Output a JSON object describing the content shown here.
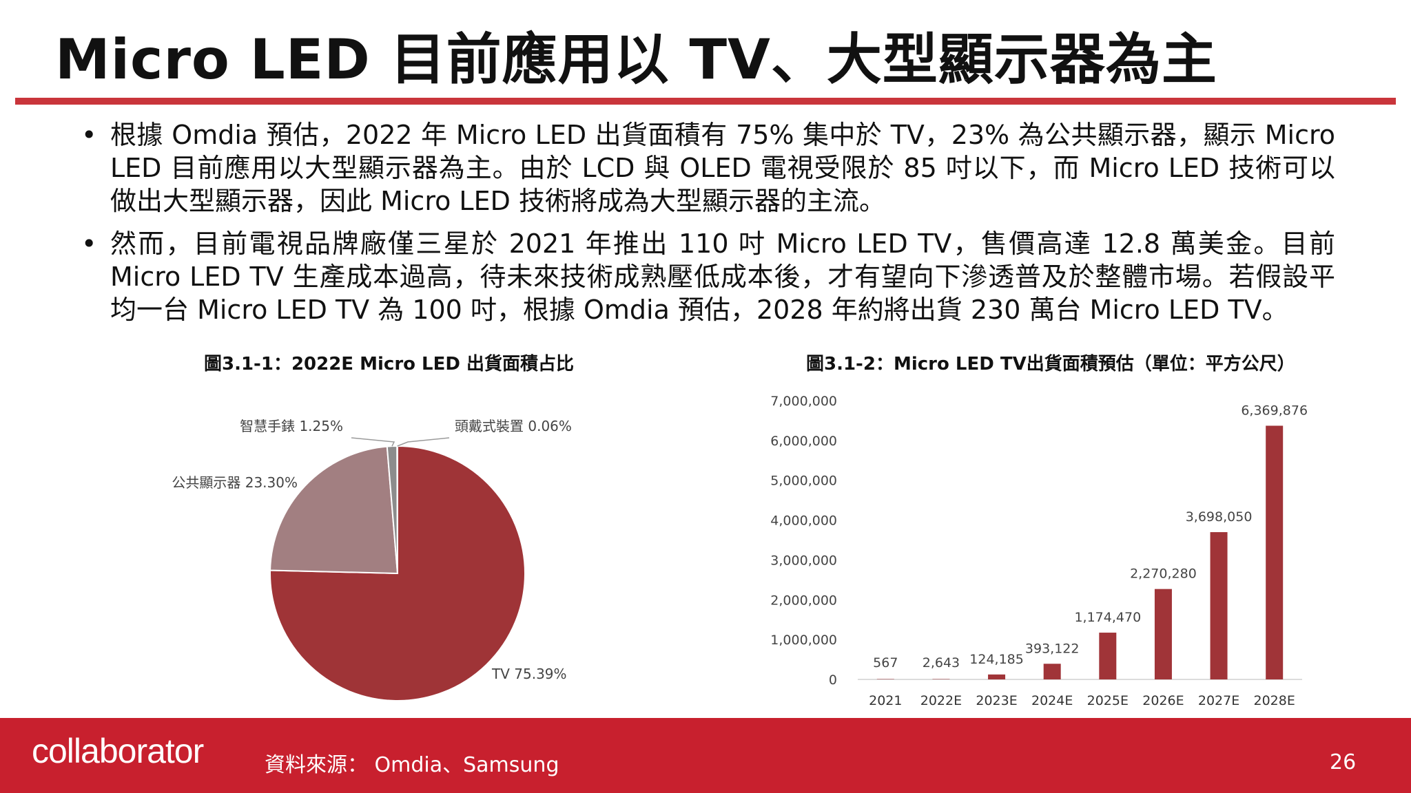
{
  "slide": {
    "title": "Micro LED 目前應用以 TV、大型顯示器為主",
    "bullets": [
      "根據 Omdia 預估，2022 年 Micro LED 出貨面積有 75% 集中於 TV，23% 為公共顯示器，顯示 Micro LED 目前應用以大型顯示器為主。由於 LCD 與 OLED 電視受限於 85 吋以下，而 Micro LED 技術可以做出大型顯示器，因此 Micro LED 技術將成為大型顯示器的主流。",
      "然而，目前電視品牌廠僅三星於 2021 年推出 110 吋 Micro LED TV，售價高達 12.8 萬美金。目前 Micro LED TV 生產成本過高，待未來技術成熟壓低成本後，才有望向下滲透普及於整體市場。若假設平均一台 Micro LED TV 為 100 吋，根據 Omdia 預估，2028 年約將出貨 230 萬台 Micro LED TV。"
    ]
  },
  "footer": {
    "logo": "collaborator",
    "source": "資料來源： Omdia、Samsung",
    "page_number": "26"
  },
  "chart_data": [
    {
      "type": "pie",
      "title": "圖3.1-1：2022E Micro LED 出貨面積占比",
      "slices": [
        {
          "label": "TV 75.39%",
          "value": 75.39,
          "color": "#9f3437"
        },
        {
          "label": "公共顯示器 23.30%",
          "value": 23.3,
          "color": "#a27f81"
        },
        {
          "label": "智慧手錶 1.25%",
          "value": 1.25,
          "color": "#8c8c8c"
        },
        {
          "label": "頭戴式裝置 0.06%",
          "value": 0.06,
          "color": "#555555"
        }
      ]
    },
    {
      "type": "bar",
      "title": "圖3.1-2：Micro LED TV出貨面積預估（單位：平方公尺）",
      "categories": [
        "2021",
        "2022E",
        "2023E",
        "2024E",
        "2025E",
        "2026E",
        "2027E",
        "2028E"
      ],
      "values": [
        567,
        2643,
        124185,
        393122,
        1174470,
        2270280,
        3698050,
        6369876
      ],
      "value_labels": [
        "567",
        "2,643",
        "124,185",
        "393,122",
        "1,174,470",
        "2,270,280",
        "3,698,050",
        "6,369,876"
      ],
      "ylim": [
        0,
        7000000
      ],
      "yticks": [
        "0",
        "1,000,000",
        "2,000,000",
        "3,000,000",
        "4,000,000",
        "5,000,000",
        "6,000,000",
        "7,000,000"
      ],
      "bar_color": "#a03438",
      "grid": false
    }
  ]
}
